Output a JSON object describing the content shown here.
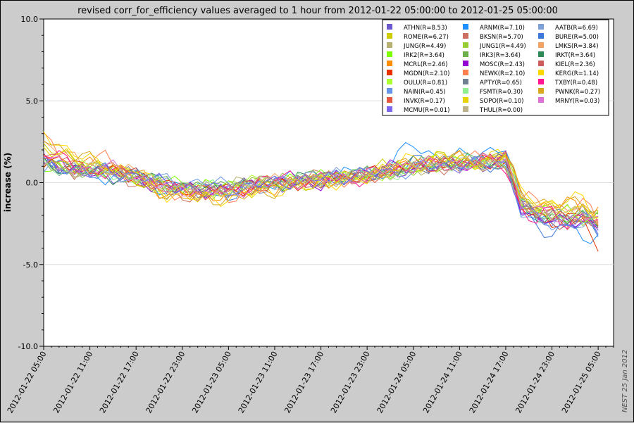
{
  "chart_data": {
    "type": "line",
    "title": "revised corr_for_efficiency values averaged to 1 hour from 2012-01-22 05:00:00 to 2012-01-25 05:00:00",
    "ylabel": "increase (%)",
    "xlabel": "",
    "ylim": [
      -10.0,
      10.0
    ],
    "yticks": [
      "10.0",
      "5.0",
      "0.0",
      "-5.0",
      "-10.0"
    ],
    "yticks_values": [
      10,
      5,
      0,
      -5,
      -10
    ],
    "xlim": [
      "2012-01-22 05:00",
      "2012-01-25 07:00"
    ],
    "xticks": [
      "2012-01-22 05:00",
      "2012-01-22 11:00",
      "2012-01-22 17:00",
      "2012-01-22 23:00",
      "2012-01-23 05:00",
      "2012-01-23 11:00",
      "2012-01-23 17:00",
      "2012-01-23 23:00",
      "2012-01-24 05:00",
      "2012-01-24 11:00",
      "2012-01-24 17:00",
      "2012-01-24 23:00",
      "2012-01-25 05:00"
    ],
    "grid": true,
    "legend_placement": "top-right",
    "credit": "NEST 25 Jan 2012",
    "legend": [
      {
        "label": "ATHN(R=8.53)",
        "color": "#6a5acd"
      },
      {
        "label": "ARNM(R=7.10)",
        "color": "#1e90ff"
      },
      {
        "label": "AATB(R=6.69)",
        "color": "#7b9fd6"
      },
      {
        "label": "ROME(R=6.27)",
        "color": "#cccc00"
      },
      {
        "label": "BKSN(R=5.70)",
        "color": "#cd6f60"
      },
      {
        "label": "BURE(R=5.00)",
        "color": "#3c78d8"
      },
      {
        "label": "JUNG(R=4.49)",
        "color": "#b8b070"
      },
      {
        "label": "JUNG1(R=4.49)",
        "color": "#9acd32"
      },
      {
        "label": "LMKS(R=3.84)",
        "color": "#f4a460"
      },
      {
        "label": "IRK2(R=3.64)",
        "color": "#7fff00"
      },
      {
        "label": "IRK3(R=3.64)",
        "color": "#6bb04a"
      },
      {
        "label": "IRKT(R=3.64)",
        "color": "#2e8b57"
      },
      {
        "label": "MCRL(R=2.46)",
        "color": "#ff8c00"
      },
      {
        "label": "MOSC(R=2.43)",
        "color": "#9400d3"
      },
      {
        "label": "KIEL(R=2.36)",
        "color": "#cd5c5c"
      },
      {
        "label": "MGDN(R=2.10)",
        "color": "#e83000"
      },
      {
        "label": "NEWK(R=2.10)",
        "color": "#ff7f50"
      },
      {
        "label": "KERG(R=1.14)",
        "color": "#ffd700"
      },
      {
        "label": "OULU(R=0.81)",
        "color": "#adff2f"
      },
      {
        "label": "APTY(R=0.65)",
        "color": "#708090"
      },
      {
        "label": "TXBY(R=0.48)",
        "color": "#ff1493"
      },
      {
        "label": "NAIN(R=0.45)",
        "color": "#6495ed"
      },
      {
        "label": "FSMT(R=0.30)",
        "color": "#90ee90"
      },
      {
        "label": "PWNK(R=0.27)",
        "color": "#daa520"
      },
      {
        "label": "INVK(R=0.17)",
        "color": "#e2583e"
      },
      {
        "label": "SOPO(R=0.10)",
        "color": "#e8d200"
      },
      {
        "label": "MRNY(R=0.03)",
        "color": "#da70d6"
      },
      {
        "label": "MCMU(R=0.01)",
        "color": "#7b68ee"
      },
      {
        "label": "THUL(R=0.00)",
        "color": "#bdb28a"
      }
    ],
    "x_hours": [
      0,
      4,
      8,
      12,
      16,
      20,
      24,
      28,
      32,
      36,
      40,
      44,
      48,
      52,
      56,
      60,
      62,
      64,
      66,
      68,
      70,
      72
    ],
    "series_shape_note": "",
    "series": [
      {
        "name": "ATHN(R=8.53)",
        "color": "#6a5acd",
        "values": [
          1.4,
          0.5,
          0.6,
          0.1,
          -0.3,
          -0.5,
          -0.4,
          0.0,
          -0.2,
          0.0,
          0.3,
          0.6,
          1.1,
          1.0,
          1.0,
          1.4,
          -1.4,
          -1.8,
          -2.4,
          -2.1,
          -1.8,
          -2.6
        ]
      },
      {
        "name": "ARNM(R=7.10)",
        "color": "#1e90ff",
        "values": [
          1.6,
          0.8,
          0.4,
          0.3,
          -0.4,
          -0.2,
          -0.5,
          -0.1,
          0.2,
          0.3,
          0.5,
          0.8,
          2.4,
          1.3,
          1.9,
          2.0,
          -1.2,
          -2.0,
          -2.6,
          -2.8,
          -3.2,
          -3.3
        ]
      },
      {
        "name": "AATB(R=6.69)",
        "color": "#7b9fd6",
        "values": [
          1.2,
          0.6,
          0.8,
          0.4,
          -0.1,
          -0.3,
          -0.6,
          -0.3,
          0.1,
          0.2,
          0.6,
          0.7,
          1.0,
          1.2,
          1.2,
          1.3,
          -1.6,
          -2.4,
          -2.6,
          -2.2,
          -2.4,
          -2.8
        ]
      },
      {
        "name": "ROME(R=6.27)",
        "color": "#cccc00",
        "values": [
          2.2,
          1.3,
          1.0,
          0.3,
          -0.3,
          -0.5,
          -0.3,
          0.1,
          -0.4,
          0.1,
          0.4,
          0.9,
          0.8,
          1.6,
          1.1,
          1.5,
          -1.0,
          -1.4,
          -1.7,
          -2.0,
          -1.6,
          -2.5
        ]
      },
      {
        "name": "BKSN(R=5.70)",
        "color": "#cd6f60",
        "values": [
          1.8,
          0.7,
          1.1,
          0.0,
          -0.4,
          -0.9,
          -0.4,
          -0.2,
          0.0,
          0.4,
          0.2,
          0.7,
          1.0,
          0.9,
          1.4,
          1.2,
          -1.2,
          -2.0,
          -2.2,
          -2.6,
          -2.3,
          -2.8
        ]
      },
      {
        "name": "BURE(R=5.00)",
        "color": "#3c78d8",
        "values": [
          1.0,
          0.9,
          0.8,
          0.6,
          0.0,
          -0.5,
          -0.7,
          -0.2,
          0.1,
          -0.1,
          0.4,
          0.5,
          1.3,
          1.0,
          1.0,
          1.2,
          -1.8,
          -2.8,
          -3.0,
          -2.6,
          -2.6,
          -3.0
        ]
      },
      {
        "name": "JUNG(R=4.49)",
        "color": "#b8b070",
        "values": [
          1.5,
          0.4,
          1.2,
          0.2,
          -0.5,
          -0.6,
          -0.2,
          0.3,
          0.0,
          0.2,
          0.2,
          0.7,
          0.7,
          1.1,
          1.5,
          1.6,
          -1.0,
          -1.6,
          -1.9,
          -1.7,
          -2.0,
          -2.0
        ]
      },
      {
        "name": "JUNG1(R=4.49)",
        "color": "#9acd32",
        "values": [
          1.6,
          0.5,
          1.0,
          0.1,
          -0.4,
          -0.7,
          -0.3,
          0.2,
          0.1,
          0.1,
          0.3,
          0.8,
          0.8,
          1.0,
          1.4,
          1.5,
          -1.1,
          -1.7,
          -2.0,
          -1.8,
          -2.1,
          -2.1
        ]
      },
      {
        "name": "LMKS(R=3.84)",
        "color": "#f4a460",
        "values": [
          2.4,
          1.4,
          0.7,
          0.7,
          -0.2,
          -0.3,
          -0.6,
          0.0,
          0.2,
          0.3,
          0.1,
          0.6,
          1.1,
          1.2,
          0.9,
          1.1,
          -1.3,
          -1.6,
          -2.1,
          -2.4,
          -1.4,
          -2.4
        ]
      },
      {
        "name": "IRK2(R=3.64)",
        "color": "#7fff00",
        "values": [
          0.8,
          1.0,
          0.5,
          0.4,
          0.1,
          -0.2,
          -0.1,
          -0.4,
          0.3,
          0.3,
          0.6,
          0.4,
          0.9,
          1.4,
          1.1,
          1.3,
          -1.5,
          -1.9,
          -1.8,
          -2.1,
          -2.4,
          -2.0
        ]
      },
      {
        "name": "IRK3(R=3.64)",
        "color": "#6bb04a",
        "values": [
          0.9,
          1.1,
          0.4,
          0.5,
          0.0,
          -0.3,
          -0.2,
          -0.3,
          0.2,
          0.4,
          0.5,
          0.5,
          1.0,
          1.3,
          1.2,
          1.2,
          -1.4,
          -2.0,
          -1.9,
          -2.2,
          -2.3,
          -2.1
        ]
      },
      {
        "name": "IRKT(R=3.64)",
        "color": "#2e8b57",
        "values": [
          1.1,
          0.9,
          0.3,
          0.6,
          -0.1,
          -0.4,
          -0.3,
          -0.2,
          0.1,
          0.5,
          0.4,
          0.6,
          1.1,
          1.2,
          1.3,
          1.1,
          -1.3,
          -2.1,
          -2.0,
          -2.3,
          -2.2,
          -2.2
        ]
      },
      {
        "name": "MCRL(R=2.46)",
        "color": "#ff8c00",
        "values": [
          2.0,
          0.9,
          1.3,
          0.0,
          -0.6,
          -0.8,
          -0.6,
          -0.4,
          -0.1,
          0.1,
          0.3,
          0.6,
          1.0,
          1.5,
          1.3,
          1.7,
          -0.9,
          -1.3,
          -1.5,
          -1.2,
          -1.8,
          -1.6
        ]
      },
      {
        "name": "MOSC(R=2.43)",
        "color": "#9400d3",
        "values": [
          1.3,
          0.6,
          0.9,
          0.2,
          -0.3,
          -0.4,
          -0.5,
          0.1,
          -0.1,
          0.0,
          0.5,
          0.9,
          0.9,
          1.1,
          1.0,
          1.4,
          -1.5,
          -2.2,
          -2.3,
          -2.5,
          -2.1,
          -2.9
        ]
      },
      {
        "name": "KIEL(R=2.36)",
        "color": "#cd5c5c",
        "values": [
          1.7,
          0.8,
          0.7,
          0.3,
          -0.2,
          -0.6,
          -0.5,
          -0.1,
          0.0,
          0.2,
          0.4,
          0.5,
          1.2,
          1.0,
          1.3,
          1.0,
          -1.2,
          -1.9,
          -2.1,
          -2.4,
          -2.2,
          -2.7
        ]
      },
      {
        "name": "MGDN(R=2.10)",
        "color": "#e83000",
        "values": [
          1.2,
          1.0,
          0.6,
          0.5,
          -0.2,
          -0.4,
          -0.4,
          -0.2,
          0.0,
          0.1,
          0.4,
          0.7,
          1.0,
          1.2,
          1.1,
          1.4,
          -1.4,
          -2.2,
          -2.5,
          -2.0,
          -1.9,
          -4.7
        ]
      },
      {
        "name": "NEWK(R=2.10)",
        "color": "#ff7f50",
        "values": [
          2.6,
          1.2,
          1.5,
          0.4,
          -0.5,
          -0.7,
          -0.8,
          -0.5,
          0.2,
          0.0,
          0.3,
          0.5,
          0.9,
          1.4,
          1.4,
          1.8,
          -0.9,
          -1.2,
          -1.4,
          -1.6,
          -1.3,
          -2.2
        ]
      },
      {
        "name": "KERG(R=1.14)",
        "color": "#ffd700",
        "values": [
          3.0,
          1.8,
          0.9,
          0.8,
          -0.7,
          -1.0,
          -0.9,
          -0.6,
          -0.3,
          0.2,
          -0.1,
          0.9,
          1.4,
          1.6,
          1.0,
          1.9,
          -0.8,
          -1.0,
          -1.3,
          -1.1,
          -1.0,
          -1.9
        ]
      },
      {
        "name": "OULU(R=0.81)",
        "color": "#adff2f",
        "values": [
          1.4,
          0.8,
          0.9,
          0.2,
          -0.3,
          -0.5,
          -0.2,
          0.2,
          0.0,
          0.3,
          0.3,
          0.6,
          0.9,
          1.2,
          1.2,
          1.4,
          -1.1,
          -1.8,
          -2.0,
          -1.9,
          -2.0,
          -2.3
        ]
      },
      {
        "name": "APTY(R=0.65)",
        "color": "#708090",
        "values": [
          1.3,
          0.7,
          1.0,
          0.3,
          -0.2,
          -0.5,
          -0.3,
          0.0,
          0.1,
          0.2,
          0.4,
          0.6,
          0.9,
          1.1,
          1.1,
          1.3,
          -1.3,
          -1.9,
          -2.1,
          -2.0,
          -2.1,
          -2.4
        ]
      },
      {
        "name": "TXBY(R=0.48)",
        "color": "#ff1493",
        "values": [
          1.9,
          1.1,
          0.5,
          0.7,
          -0.6,
          -0.2,
          -0.7,
          0.1,
          0.4,
          0.2,
          0.2,
          0.4,
          1.3,
          0.9,
          1.5,
          0.9,
          -1.6,
          -2.4,
          -1.7,
          -2.6,
          -1.8,
          -2.6
        ]
      },
      {
        "name": "NAIN(R=0.45)",
        "color": "#6495ed",
        "values": [
          0.6,
          1.0,
          0.2,
          0.6,
          0.1,
          0.0,
          -0.1,
          -0.3,
          0.3,
          0.4,
          0.6,
          0.4,
          0.8,
          1.2,
          1.2,
          1.0,
          -1.7,
          -2.3,
          -2.5,
          -2.7,
          -2.4,
          -3.4
        ]
      },
      {
        "name": "FSMT(R=0.30)",
        "color": "#90ee90",
        "values": [
          1.0,
          0.6,
          0.7,
          0.3,
          -0.1,
          -0.2,
          -0.3,
          -0.1,
          0.2,
          0.3,
          0.5,
          0.5,
          0.8,
          1.1,
          1.3,
          1.2,
          -1.4,
          -1.8,
          -2.0,
          -2.1,
          -2.2,
          -2.2
        ]
      },
      {
        "name": "PWNK(R=0.27)",
        "color": "#daa520",
        "values": [
          2.8,
          1.6,
          1.2,
          0.6,
          -0.8,
          -0.9,
          -1.0,
          -0.7,
          -0.2,
          0.3,
          0.0,
          0.8,
          1.2,
          1.7,
          1.2,
          1.8,
          -0.8,
          -1.1,
          -1.2,
          -1.4,
          -1.2,
          -1.8
        ]
      },
      {
        "name": "INVK(R=0.17)",
        "color": "#e2583e",
        "values": [
          1.5,
          0.9,
          0.8,
          0.4,
          -0.3,
          -0.6,
          -0.4,
          -0.1,
          0.0,
          0.2,
          0.3,
          0.6,
          1.0,
          1.1,
          1.2,
          1.3,
          -1.3,
          -2.0,
          -2.2,
          -2.3,
          -2.0,
          -2.5
        ]
      },
      {
        "name": "SOPO(R=0.10)",
        "color": "#e8d200",
        "values": [
          2.2,
          1.3,
          1.1,
          0.2,
          -0.6,
          -0.7,
          -0.7,
          -0.3,
          -0.1,
          0.1,
          0.2,
          0.7,
          1.0,
          1.5,
          1.3,
          1.7,
          -1.0,
          -1.4,
          -1.6,
          -1.5,
          -1.5,
          -2.1
        ]
      },
      {
        "name": "MRNY(R=0.03)",
        "color": "#da70d6",
        "values": [
          1.4,
          0.8,
          1.0,
          0.4,
          -0.4,
          -0.5,
          -0.6,
          -0.2,
          0.1,
          0.1,
          0.4,
          0.7,
          1.1,
          1.2,
          1.2,
          1.5,
          -1.2,
          -1.8,
          -2.1,
          -2.2,
          -2.0,
          -2.6
        ]
      },
      {
        "name": "MCMU(R=0.01)",
        "color": "#7b68ee",
        "values": [
          1.1,
          0.7,
          0.6,
          0.5,
          -0.1,
          -0.4,
          -0.4,
          -0.1,
          0.1,
          0.2,
          0.5,
          0.6,
          0.9,
          1.0,
          1.1,
          1.2,
          -1.5,
          -2.1,
          -2.3,
          -2.4,
          -2.2,
          -2.7
        ]
      },
      {
        "name": "THUL(R=0.00)",
        "color": "#bdb28a",
        "values": [
          1.2,
          0.6,
          0.9,
          0.3,
          -0.2,
          -0.4,
          -0.3,
          0.0,
          0.0,
          0.2,
          0.4,
          0.6,
          0.9,
          1.1,
          1.2,
          1.3,
          -1.2,
          -1.8,
          -2.0,
          -2.0,
          -2.1,
          -2.3
        ]
      }
    ]
  }
}
